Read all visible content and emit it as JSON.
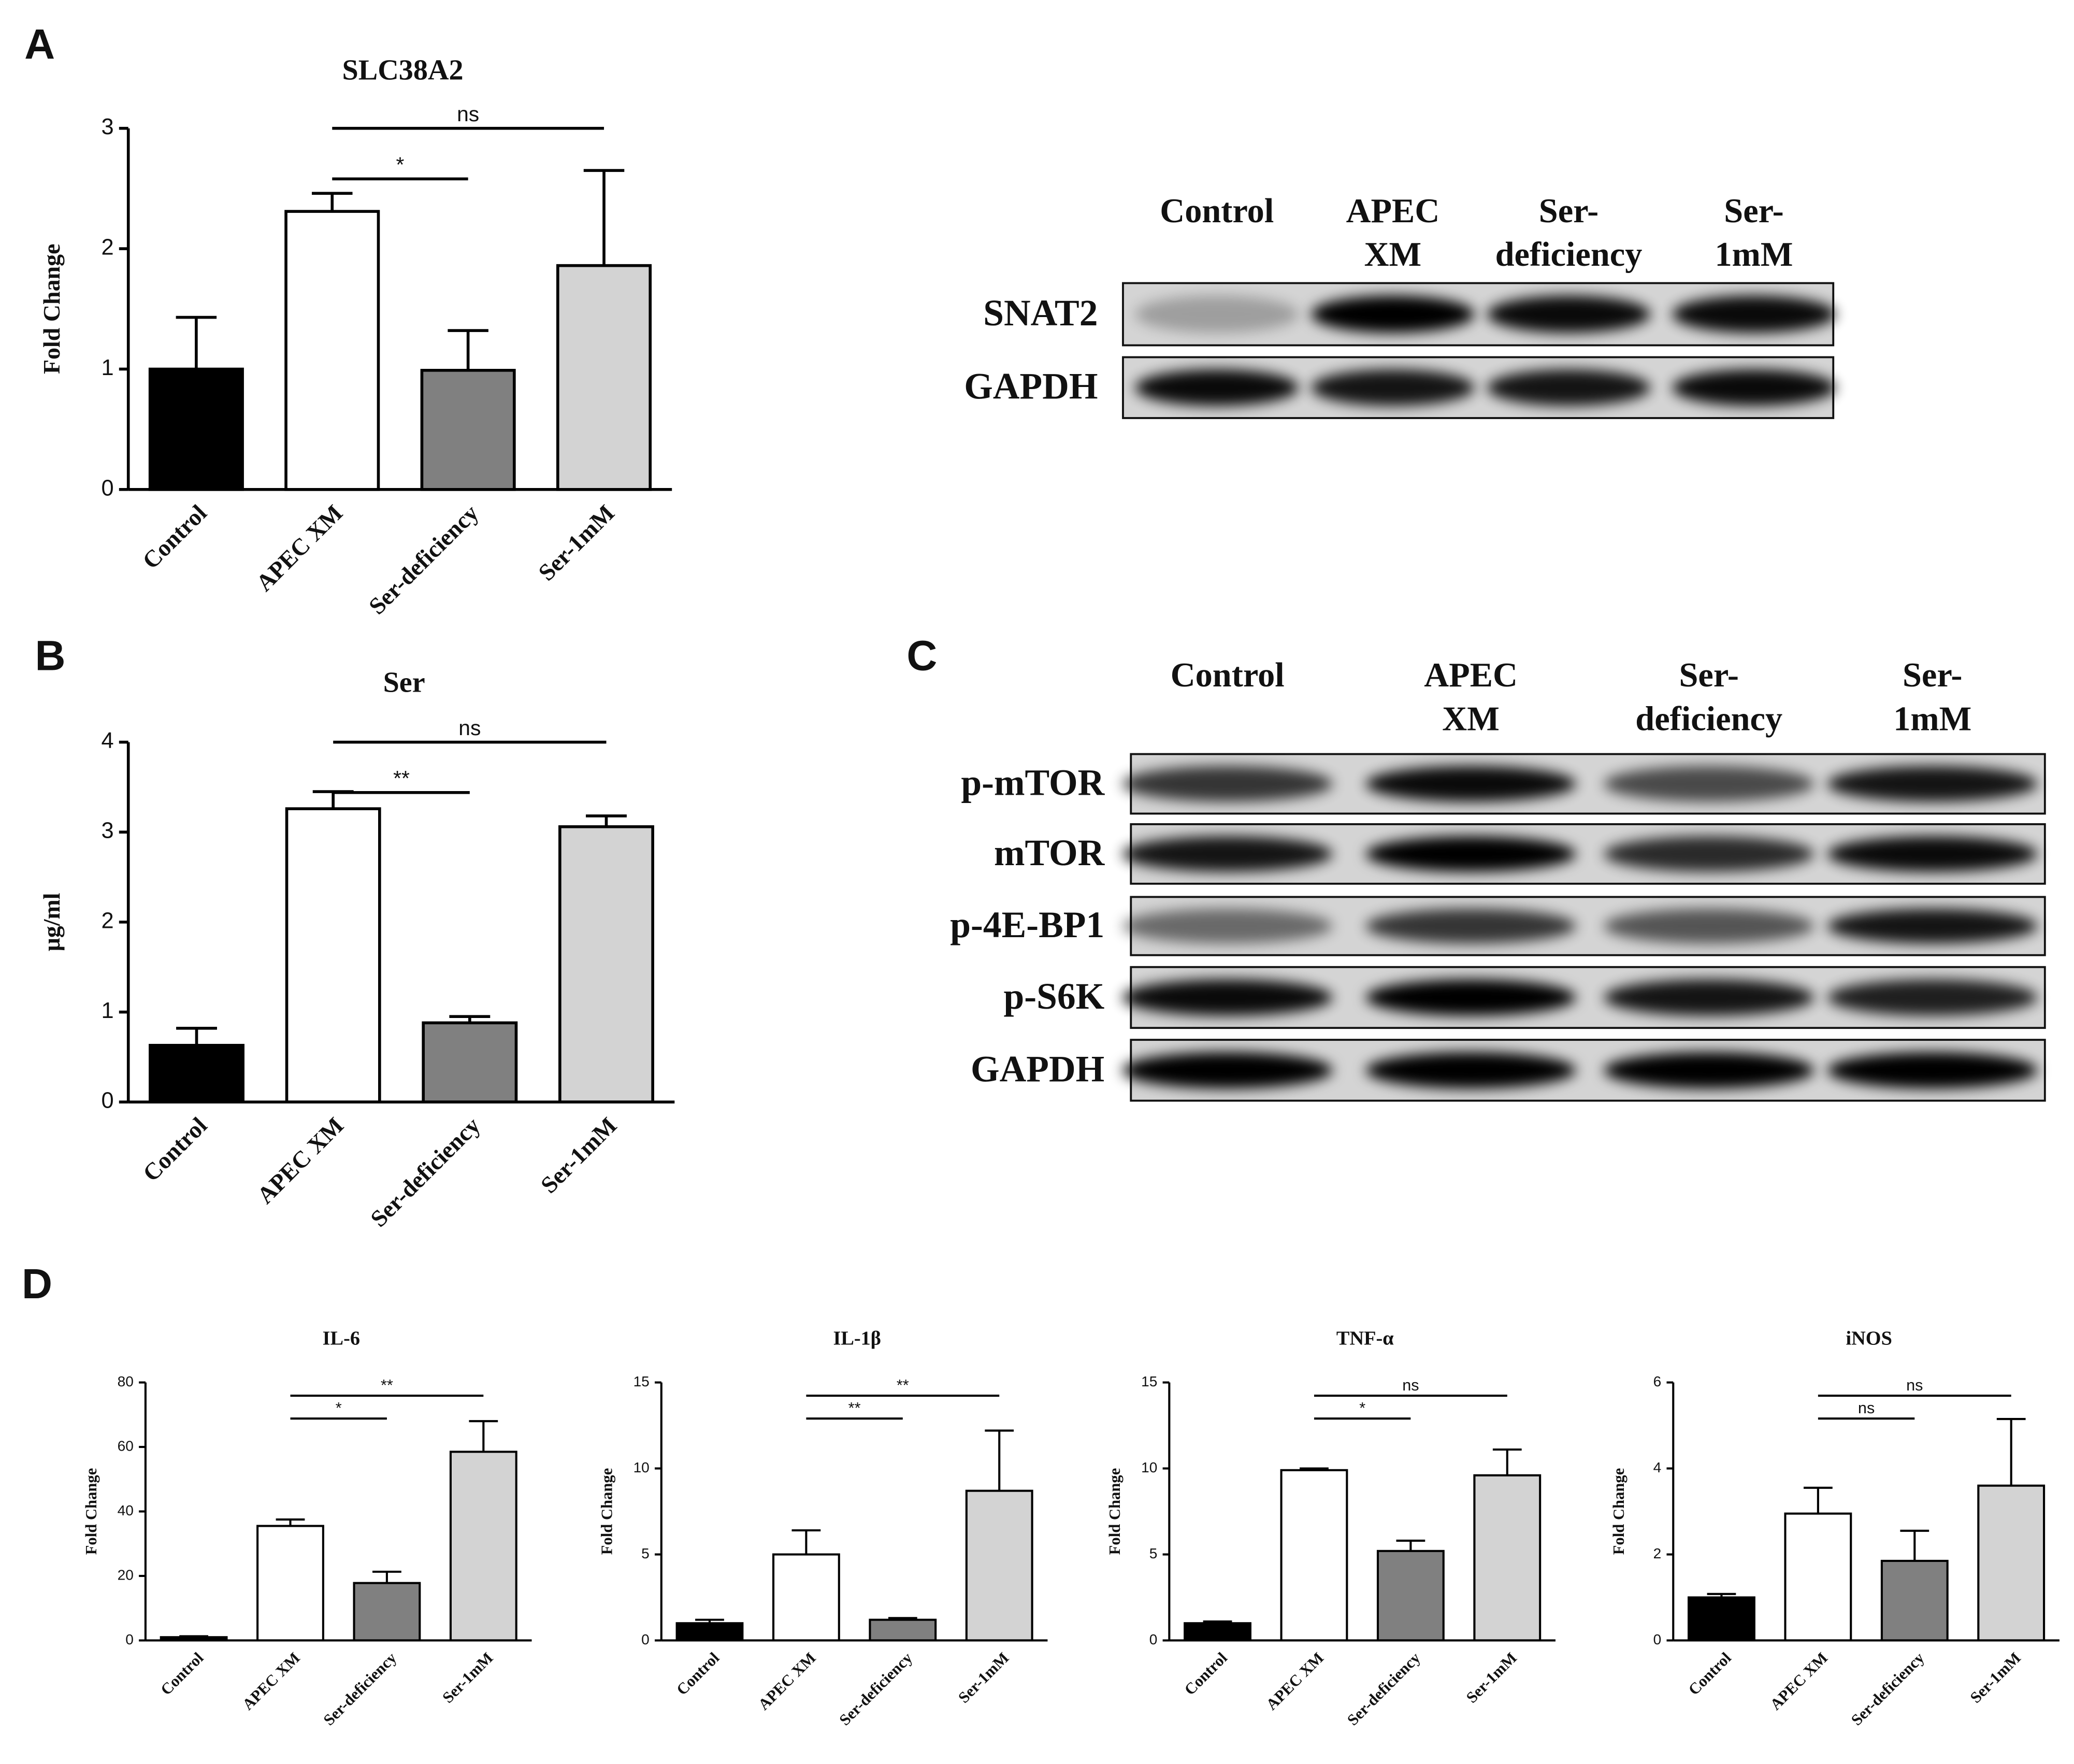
{
  "panel_labels": [
    "A",
    "B",
    "C",
    "D"
  ],
  "chart_data": [
    {
      "type": "bar",
      "title": "SLC38A2",
      "ylabel": "Fold Change",
      "categories": [
        "Control",
        "APEC XM",
        "Ser-deficiency",
        "Ser-1mM"
      ],
      "values": [
        1.0,
        2.31,
        0.99,
        1.86
      ],
      "errors": [
        0.43,
        0.15,
        0.33,
        0.79
      ],
      "colors": [
        "#000000",
        "#ffffff",
        "#808080",
        "#d3d3d3"
      ],
      "ylim": [
        0,
        3
      ],
      "yticks": [
        0,
        1,
        2,
        3
      ],
      "annotations": [
        {
          "from": 1,
          "to": 2,
          "text": "*"
        },
        {
          "from": 1,
          "to": 3,
          "text": "ns"
        }
      ]
    },
    {
      "type": "bar",
      "title": "Ser",
      "ylabel": "μg/ml",
      "categories": [
        "Control",
        "APEC XM",
        "Ser-deficiency",
        "Ser-1mM"
      ],
      "values": [
        0.63,
        3.26,
        0.88,
        3.06
      ],
      "errors": [
        0.19,
        0.19,
        0.07,
        0.12
      ],
      "colors": [
        "#000000",
        "#ffffff",
        "#808080",
        "#d3d3d3"
      ],
      "ylim": [
        0,
        4
      ],
      "yticks": [
        0,
        1,
        2,
        3,
        4
      ],
      "annotations": [
        {
          "from": 1,
          "to": 2,
          "text": "**"
        },
        {
          "from": 1,
          "to": 3,
          "text": "ns"
        }
      ]
    },
    {
      "type": "bar",
      "title": "IL-6",
      "ylabel": "Fold Change",
      "categories": [
        "Control",
        "APEC XM",
        "Ser-deficiency",
        "Ser-1mM"
      ],
      "values": [
        1.0,
        35.5,
        17.8,
        58.5
      ],
      "errors": [
        0.3,
        2.0,
        3.5,
        9.5
      ],
      "colors": [
        "#000000",
        "#ffffff",
        "#808080",
        "#d3d3d3"
      ],
      "ylim": [
        0,
        80
      ],
      "yticks": [
        0,
        20,
        40,
        60,
        80
      ],
      "annotations": [
        {
          "from": 1,
          "to": 2,
          "text": "*"
        },
        {
          "from": 1,
          "to": 3,
          "text": "**"
        }
      ]
    },
    {
      "type": "bar",
      "title": "IL-1β",
      "ylabel": "Fold Change",
      "categories": [
        "Control",
        "APEC XM",
        "Ser-deficiency",
        "Ser-1mM"
      ],
      "values": [
        1.0,
        5.0,
        1.2,
        8.7
      ],
      "errors": [
        0.2,
        1.4,
        0.1,
        3.5
      ],
      "colors": [
        "#000000",
        "#ffffff",
        "#808080",
        "#d3d3d3"
      ],
      "ylim": [
        0,
        15
      ],
      "yticks": [
        0,
        5,
        10,
        15
      ],
      "annotations": [
        {
          "from": 1,
          "to": 2,
          "text": "**"
        },
        {
          "from": 1,
          "to": 3,
          "text": "**"
        }
      ]
    },
    {
      "type": "bar",
      "title": "TNF-α",
      "ylabel": "Fold Change",
      "categories": [
        "Control",
        "APEC XM",
        "Ser-deficiency",
        "Ser-1mM"
      ],
      "values": [
        1.0,
        9.9,
        5.2,
        9.6
      ],
      "errors": [
        0.1,
        0.1,
        0.6,
        1.5
      ],
      "colors": [
        "#000000",
        "#ffffff",
        "#808080",
        "#d3d3d3"
      ],
      "ylim": [
        0,
        15
      ],
      "yticks": [
        0,
        5,
        10,
        15
      ],
      "annotations": [
        {
          "from": 1,
          "to": 2,
          "text": "*"
        },
        {
          "from": 1,
          "to": 3,
          "text": "ns"
        }
      ]
    },
    {
      "type": "bar",
      "title": "iNOS",
      "ylabel": "Fold Change",
      "categories": [
        "Control",
        "APEC XM",
        "Ser-deficiency",
        "Ser-1mM"
      ],
      "values": [
        1.0,
        2.95,
        1.85,
        3.6
      ],
      "errors": [
        0.08,
        0.6,
        0.7,
        1.55
      ],
      "colors": [
        "#000000",
        "#ffffff",
        "#808080",
        "#d3d3d3"
      ],
      "ylim": [
        0,
        6
      ],
      "yticks": [
        0,
        2,
        4,
        6
      ],
      "annotations": [
        {
          "from": 1,
          "to": 2,
          "text": "ns"
        },
        {
          "from": 1,
          "to": 3,
          "text": "ns"
        }
      ]
    }
  ],
  "blots": [
    {
      "headers": [
        [
          "Control"
        ],
        [
          "APEC",
          "XM"
        ],
        [
          "Ser-",
          "deficiency"
        ],
        [
          "Ser-",
          "1mM"
        ]
      ],
      "rows": [
        "SNAT2",
        "GAPDH"
      ]
    },
    {
      "headers": [
        [
          "Control"
        ],
        [
          "APEC",
          "XM"
        ],
        [
          "Ser-",
          "deficiency"
        ],
        [
          "Ser-",
          "1mM"
        ]
      ],
      "rows": [
        "p-mTOR",
        "mTOR",
        "p-4E-BP1",
        "p-S6K",
        "GAPDH"
      ]
    }
  ]
}
